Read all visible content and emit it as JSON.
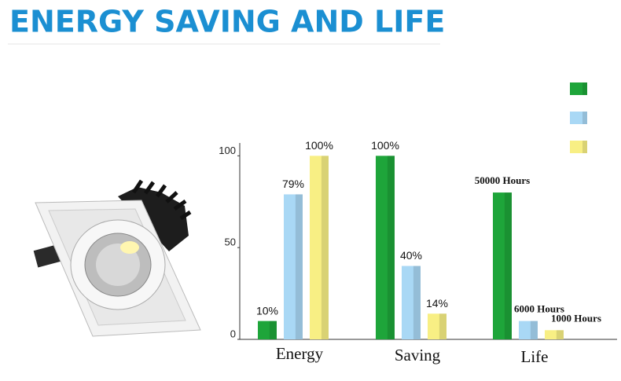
{
  "chart_data": {
    "type": "bar",
    "title": "ENERGY SAVING AND LIFE",
    "categories": [
      "Energy",
      "Saving",
      "Life"
    ],
    "series": [
      {
        "color": "#1ea53a",
        "values": [
          10,
          100,
          80
        ],
        "value_labels": [
          "10%",
          "100%",
          null
        ]
      },
      {
        "color": "#a9d8f5",
        "values": [
          79,
          40,
          10
        ],
        "value_labels": [
          "79%",
          "40%",
          null
        ]
      },
      {
        "color": "#f8ef84",
        "values": [
          100,
          14,
          5
        ],
        "value_labels": [
          "100%",
          "14%",
          null
        ]
      }
    ],
    "annotations": [
      "50000 Hours",
      "6000 Hours",
      "1000 Hours"
    ],
    "ylim": [
      0,
      107
    ],
    "yticks": [
      0,
      50,
      100
    ],
    "legend": "top-right"
  }
}
